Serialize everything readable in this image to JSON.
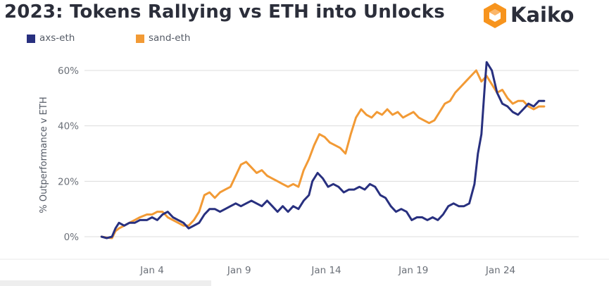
{
  "title": "2023: Tokens Rallying vs ETH into Unlocks",
  "brand": {
    "name": "Kaiko",
    "icon": "kaiko-logo-icon",
    "color": "#f7941d"
  },
  "colors": {
    "axs": "#28307f",
    "sand": "#f29a35",
    "grid": "#dcdcdc",
    "tick": "#6b7078"
  },
  "chart_data": {
    "type": "line",
    "title": "2023: Tokens Rallying vs ETH into Unlocks",
    "xlabel": "",
    "ylabel": "% Outperformance v ETH",
    "x_range": [
      "Jan 1",
      "Jan 27"
    ],
    "ylim": [
      -2,
      65
    ],
    "yticks": [
      0,
      20,
      40,
      60
    ],
    "ytick_labels": [
      "0%",
      "20%",
      "40%",
      "60%"
    ],
    "xtick_labels": [
      "Jan 4",
      "Jan 9",
      "Jan 14",
      "Jan 19",
      "Jan 24"
    ],
    "xtick_days": [
      4,
      9,
      14,
      19,
      24
    ],
    "grid": true,
    "legend": "top-left",
    "series": [
      {
        "name": "axs-eth",
        "color": "#28307f",
        "points": [
          [
            1.1,
            0
          ],
          [
            1.4,
            -0.5
          ],
          [
            1.7,
            0
          ],
          [
            1.9,
            3
          ],
          [
            2.1,
            5
          ],
          [
            2.4,
            4
          ],
          [
            2.7,
            5
          ],
          [
            3.0,
            5
          ],
          [
            3.3,
            6
          ],
          [
            3.7,
            6
          ],
          [
            4.0,
            7
          ],
          [
            4.3,
            6
          ],
          [
            4.6,
            8
          ],
          [
            4.9,
            9
          ],
          [
            5.2,
            7
          ],
          [
            5.5,
            6
          ],
          [
            5.8,
            5
          ],
          [
            6.1,
            3
          ],
          [
            6.4,
            4
          ],
          [
            6.7,
            5
          ],
          [
            7.0,
            8
          ],
          [
            7.3,
            10
          ],
          [
            7.6,
            10
          ],
          [
            7.9,
            9
          ],
          [
            8.2,
            10
          ],
          [
            8.5,
            11
          ],
          [
            8.8,
            12
          ],
          [
            9.1,
            11
          ],
          [
            9.4,
            12
          ],
          [
            9.7,
            13
          ],
          [
            10.0,
            12
          ],
          [
            10.3,
            11
          ],
          [
            10.6,
            13
          ],
          [
            10.9,
            11
          ],
          [
            11.2,
            9
          ],
          [
            11.5,
            11
          ],
          [
            11.8,
            9
          ],
          [
            12.1,
            11
          ],
          [
            12.4,
            10
          ],
          [
            12.7,
            13
          ],
          [
            13.0,
            15
          ],
          [
            13.2,
            20
          ],
          [
            13.5,
            23
          ],
          [
            13.8,
            21
          ],
          [
            14.1,
            18
          ],
          [
            14.4,
            19
          ],
          [
            14.7,
            18
          ],
          [
            15.0,
            16
          ],
          [
            15.3,
            17
          ],
          [
            15.6,
            17
          ],
          [
            15.9,
            18
          ],
          [
            16.2,
            17
          ],
          [
            16.5,
            19
          ],
          [
            16.8,
            18
          ],
          [
            17.1,
            15
          ],
          [
            17.4,
            14
          ],
          [
            17.7,
            11
          ],
          [
            18.0,
            9
          ],
          [
            18.3,
            10
          ],
          [
            18.6,
            9
          ],
          [
            18.9,
            6
          ],
          [
            19.2,
            7
          ],
          [
            19.5,
            7
          ],
          [
            19.8,
            6
          ],
          [
            20.1,
            7
          ],
          [
            20.4,
            6
          ],
          [
            20.7,
            8
          ],
          [
            21.0,
            11
          ],
          [
            21.3,
            12
          ],
          [
            21.6,
            11
          ],
          [
            21.9,
            11
          ],
          [
            22.2,
            12
          ],
          [
            22.5,
            19
          ],
          [
            22.7,
            30
          ],
          [
            22.9,
            37
          ],
          [
            23.1,
            55
          ],
          [
            23.2,
            63
          ],
          [
            23.5,
            60
          ],
          [
            23.8,
            52
          ],
          [
            24.1,
            48
          ],
          [
            24.4,
            47
          ],
          [
            24.7,
            45
          ],
          [
            25.0,
            44
          ],
          [
            25.3,
            46
          ],
          [
            25.6,
            48
          ],
          [
            25.9,
            47
          ],
          [
            26.2,
            49
          ],
          [
            26.5,
            49
          ]
        ]
      },
      {
        "name": "sand-eth",
        "color": "#f29a35",
        "points": [
          [
            1.1,
            0
          ],
          [
            1.4,
            -0.3
          ],
          [
            1.7,
            -0.5
          ],
          [
            1.9,
            2
          ],
          [
            2.1,
            3
          ],
          [
            2.4,
            4
          ],
          [
            2.7,
            5
          ],
          [
            3.0,
            6
          ],
          [
            3.3,
            7
          ],
          [
            3.7,
            8
          ],
          [
            4.0,
            8
          ],
          [
            4.3,
            9
          ],
          [
            4.6,
            9
          ],
          [
            4.9,
            7
          ],
          [
            5.2,
            6
          ],
          [
            5.5,
            5
          ],
          [
            5.8,
            4
          ],
          [
            6.1,
            4
          ],
          [
            6.4,
            6
          ],
          [
            6.7,
            9
          ],
          [
            7.0,
            15
          ],
          [
            7.3,
            16
          ],
          [
            7.6,
            14
          ],
          [
            7.9,
            16
          ],
          [
            8.2,
            17
          ],
          [
            8.5,
            18
          ],
          [
            8.8,
            22
          ],
          [
            9.1,
            26
          ],
          [
            9.4,
            27
          ],
          [
            9.7,
            25
          ],
          [
            10.0,
            23
          ],
          [
            10.3,
            24
          ],
          [
            10.6,
            22
          ],
          [
            10.9,
            21
          ],
          [
            11.2,
            20
          ],
          [
            11.5,
            19
          ],
          [
            11.8,
            18
          ],
          [
            12.1,
            19
          ],
          [
            12.4,
            18
          ],
          [
            12.7,
            24
          ],
          [
            13.0,
            28
          ],
          [
            13.3,
            33
          ],
          [
            13.6,
            37
          ],
          [
            13.9,
            36
          ],
          [
            14.2,
            34
          ],
          [
            14.5,
            33
          ],
          [
            14.8,
            32
          ],
          [
            15.1,
            30
          ],
          [
            15.4,
            37
          ],
          [
            15.7,
            43
          ],
          [
            16.0,
            46
          ],
          [
            16.3,
            44
          ],
          [
            16.6,
            43
          ],
          [
            16.9,
            45
          ],
          [
            17.2,
            44
          ],
          [
            17.5,
            46
          ],
          [
            17.8,
            44
          ],
          [
            18.1,
            45
          ],
          [
            18.4,
            43
          ],
          [
            18.7,
            44
          ],
          [
            19.0,
            45
          ],
          [
            19.3,
            43
          ],
          [
            19.6,
            42
          ],
          [
            19.9,
            41
          ],
          [
            20.2,
            42
          ],
          [
            20.5,
            45
          ],
          [
            20.8,
            48
          ],
          [
            21.1,
            49
          ],
          [
            21.4,
            52
          ],
          [
            21.7,
            54
          ],
          [
            22.0,
            56
          ],
          [
            22.3,
            58
          ],
          [
            22.6,
            60
          ],
          [
            22.9,
            56
          ],
          [
            23.2,
            58
          ],
          [
            23.5,
            55
          ],
          [
            23.8,
            52
          ],
          [
            24.1,
            53
          ],
          [
            24.4,
            50
          ],
          [
            24.7,
            48
          ],
          [
            25.0,
            49
          ],
          [
            25.3,
            49
          ],
          [
            25.6,
            47
          ],
          [
            25.9,
            46
          ],
          [
            26.2,
            47
          ],
          [
            26.5,
            47
          ]
        ]
      }
    ]
  }
}
